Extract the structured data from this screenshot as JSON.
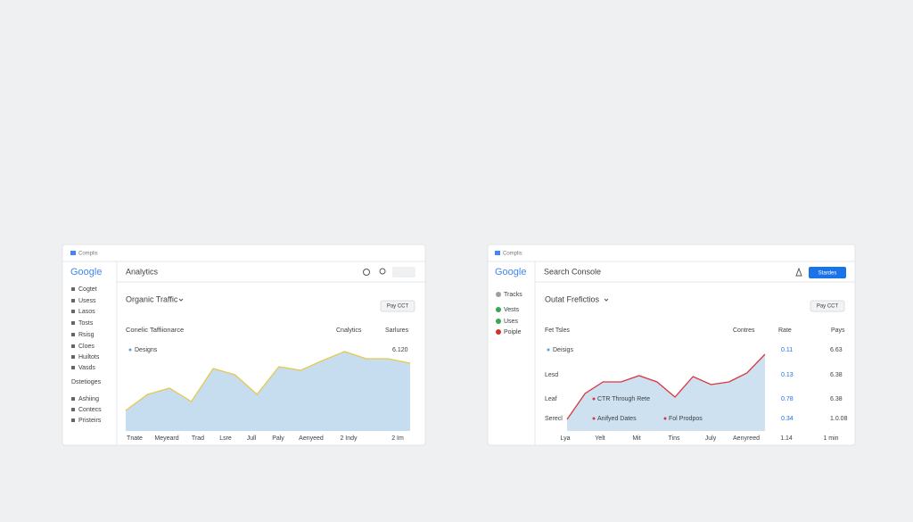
{
  "panels": [
    {
      "topbar": "Complis",
      "logo": "Google",
      "title": "Analytics",
      "nav": [
        "Cogtet",
        "Usess",
        "Lasos",
        "Tosts",
        "Rsisg",
        "Cloes",
        "Huiltots",
        "Vasds"
      ],
      "nav_section": "Dstetioges",
      "nav2": [
        "Ashiing",
        "Contecs",
        "Pristeirs"
      ],
      "subtitle": "Organic Traffic",
      "button": "Pay CCT",
      "card_title": "Conelic Taffiionarce",
      "columns": [
        "Cnalytics",
        "Sarlures"
      ],
      "legend": "Designs",
      "legend_value": "6.120",
      "chart": {
        "type": "area",
        "color": "#e6c94e",
        "fill": "#bcd6ec",
        "ylim": [
          0,
          100
        ],
        "values": [
          23,
          41,
          48,
          33,
          70,
          63,
          41,
          72,
          68,
          79,
          89,
          81,
          81,
          76
        ]
      },
      "x_labels": [
        "Tnate",
        "Meyeard",
        "Trad",
        "Lsre",
        "Jull",
        "Paly",
        "Aenyeed",
        "2 Indy",
        "2 Im"
      ]
    },
    {
      "topbar": "Complis",
      "logo": "Google",
      "title": "Search Console",
      "button_primary": "Stardes",
      "nav": [
        {
          "label": "Tracks",
          "color": "#9e9e9e"
        },
        {
          "label": "Vests",
          "color": "#34a853"
        },
        {
          "label": "Uses",
          "color": "#34a853"
        },
        {
          "label": "Poiple",
          "color": "#d93025"
        }
      ],
      "subtitle": "Outat Frefictios",
      "button": "Pay CCT",
      "table": {
        "header": [
          "Fet Tsles",
          "Contres",
          "Rate",
          "Pays"
        ],
        "rows": [
          [
            "Deisigs",
            "0.11",
            "6.63"
          ],
          [
            "Lesd",
            "0.13",
            "6.38"
          ],
          [
            "Leaf",
            "0.78",
            "6.38"
          ],
          [
            "Serecl",
            "0.34",
            "1.0.08"
          ]
        ]
      },
      "legends": [
        "CTR Through Rete",
        "Anifyed Dates",
        "Fol Prodpos"
      ],
      "chart": {
        "type": "line",
        "color": "#d9363e",
        "fill": "#c5dcef",
        "ylim": [
          0,
          100
        ],
        "values": [
          13,
          42,
          55,
          55,
          62,
          55,
          38,
          61,
          52,
          55,
          65,
          86
        ]
      },
      "x_labels": [
        "Lya",
        "Yelt",
        "Mit",
        "Tins",
        "July",
        "Aenyreed",
        "1.14",
        "1 min"
      ]
    }
  ]
}
